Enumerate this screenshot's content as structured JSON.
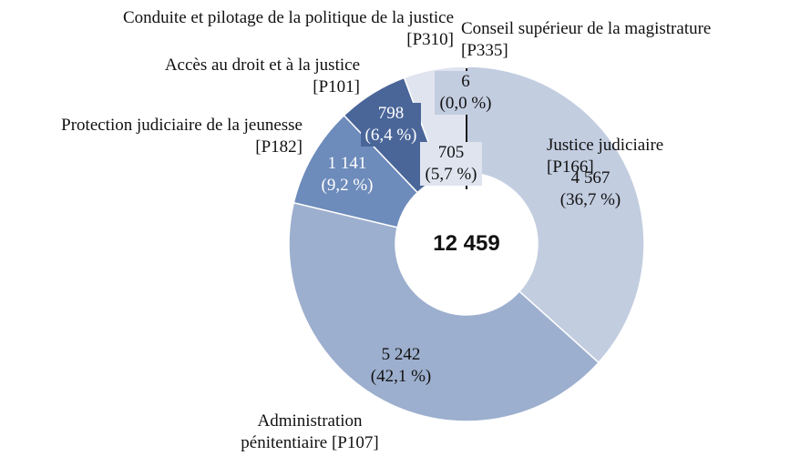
{
  "chart_data": {
    "type": "pie",
    "donut": true,
    "total_label": "12 459",
    "slices": [
      {
        "name": "Justice judiciaire [P166]",
        "value": 4567,
        "value_label": "4 567",
        "percent_label": "(36,7 %)",
        "color": "#c3cde0"
      },
      {
        "name": "Administration pénitentiaire [P107]",
        "value": 5242,
        "value_label": "5 242",
        "percent_label": "(42,1 %)",
        "color": "#9dafce"
      },
      {
        "name": "Protection judiciaire de la jeunesse [P182]",
        "value": 1141,
        "value_label": "1 141",
        "percent_label": "(9,2 %)",
        "color": "#6d8bbb"
      },
      {
        "name": "Accès au droit et à la justice [P101]",
        "value": 798,
        "value_label": "798",
        "percent_label": "(6,4 %)",
        "color": "#4a6699"
      },
      {
        "name": "Conduite et pilotage de la politique de la justice [P310]",
        "value": 705,
        "value_label": "705",
        "percent_label": "(5,7 %)",
        "color": "#dfe4ef"
      },
      {
        "name": "Conseil supérieur de la magistrature [P335]",
        "value": 6,
        "value_label": "6",
        "percent_label": "(0,0 %)",
        "color": "#c3cde0"
      }
    ],
    "legend": "none"
  },
  "labels": {
    "jj": [
      "Justice judiciaire",
      "[P166]"
    ],
    "ap": [
      "Administration",
      "pénitentiaire [P107]"
    ],
    "pjj": [
      "Protection judiciaire de la jeunesse",
      "[P182]"
    ],
    "ad": [
      "Accès au droit et à la justice",
      "[P101]"
    ],
    "cp": [
      "Conduite et pilotage de la politique de la justice",
      "[P310]"
    ],
    "csm": [
      "Conseil supérieur de la magistrature",
      "[P335]"
    ]
  }
}
